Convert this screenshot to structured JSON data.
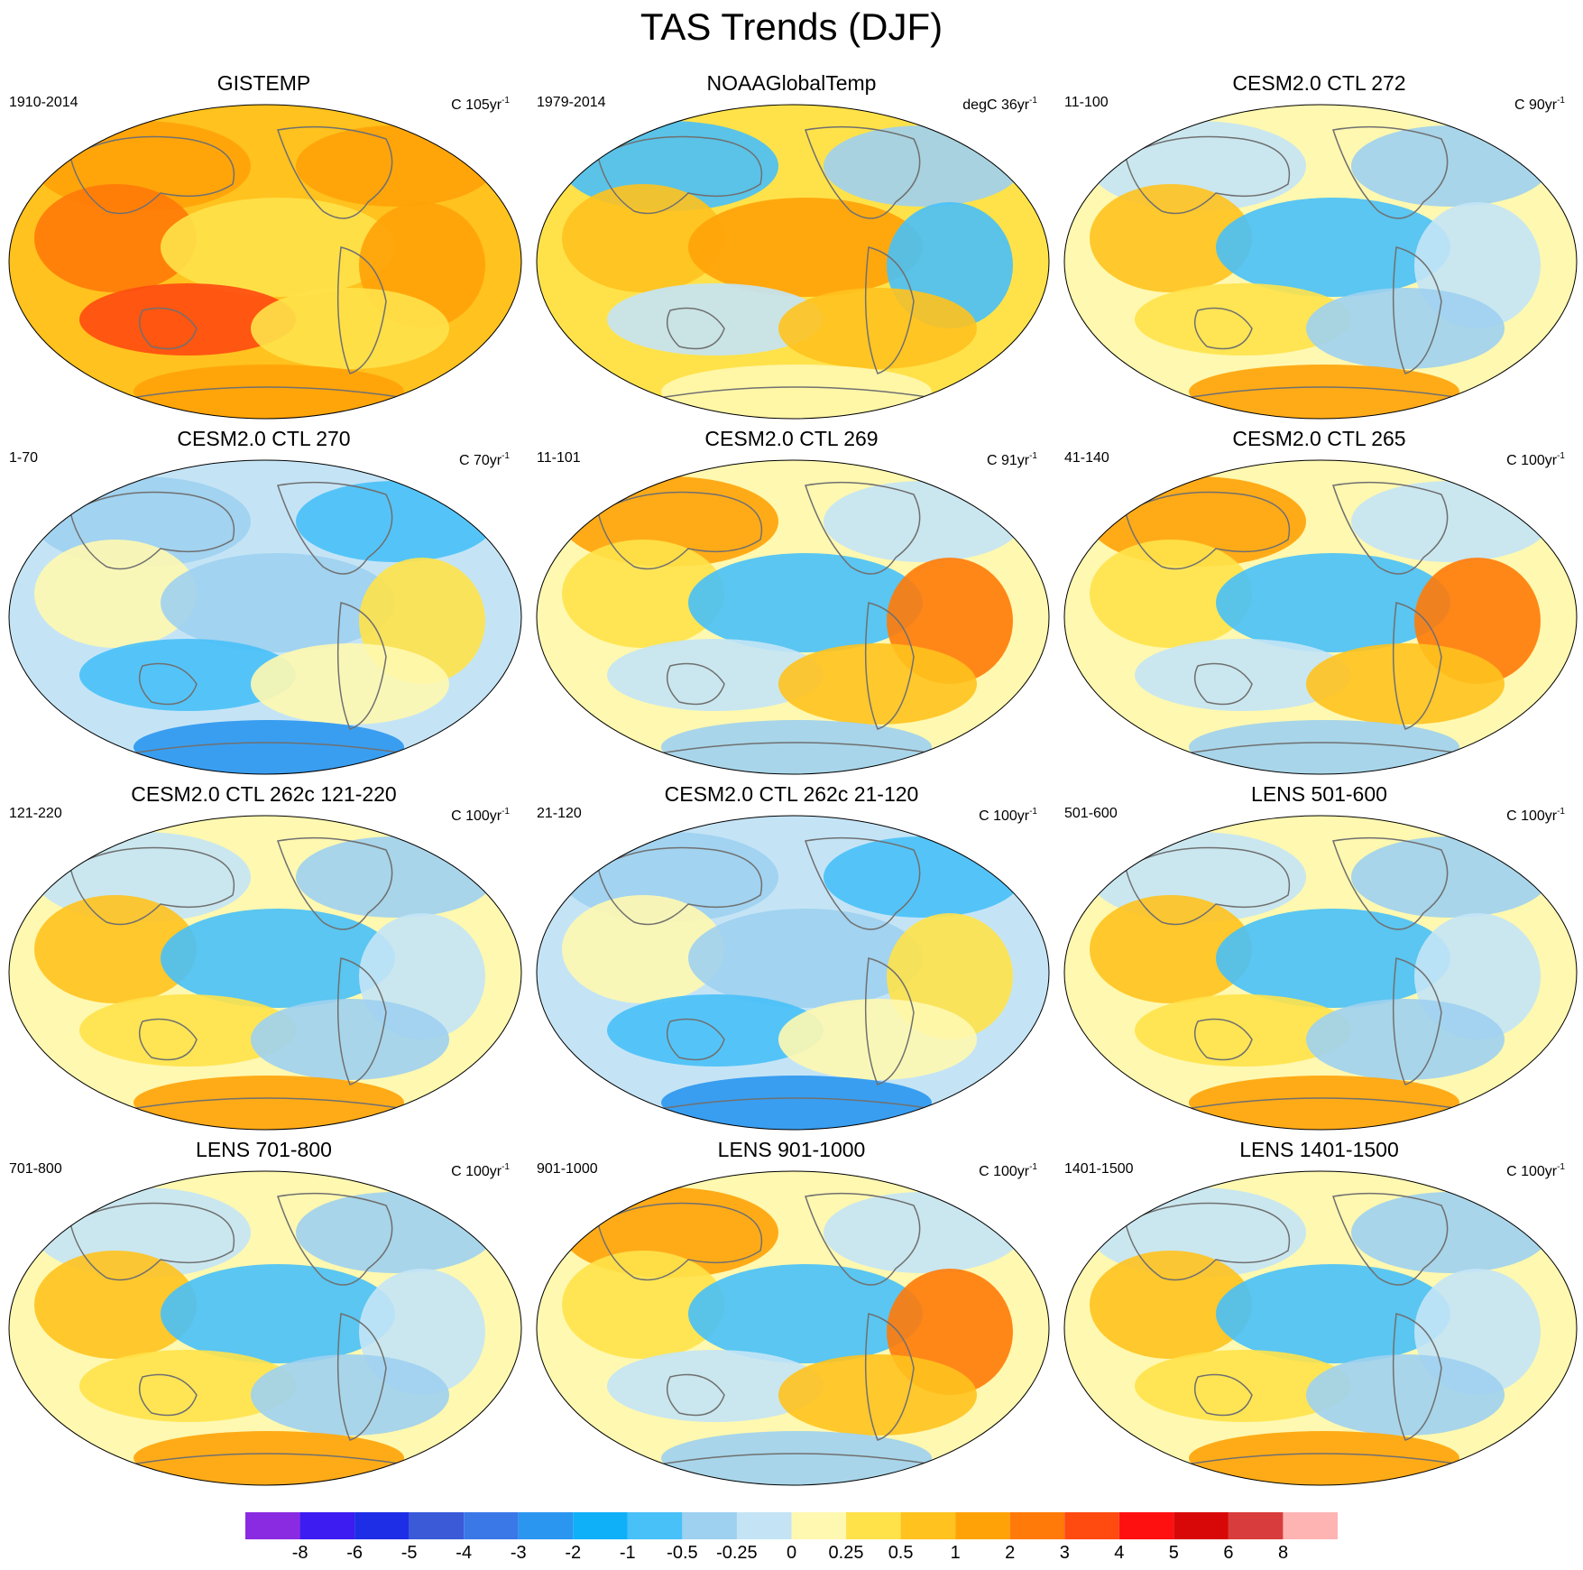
{
  "title": "TAS Trends (DJF)",
  "panels": [
    {
      "title": "GISTEMP",
      "left": "1910-2014",
      "unit": "C 105yr",
      "sup": "-1",
      "regime": "warm"
    },
    {
      "title": "NOAAGlobalTemp",
      "left": "1979-2014",
      "unit": "degC 36yr",
      "sup": "-1",
      "regime": "noaa"
    },
    {
      "title": "CESM2.0 CTL 272",
      "left": "11-100",
      "unit": "C 90yr",
      "sup": "-1",
      "regime": "mixed"
    },
    {
      "title": "CESM2.0 CTL 270",
      "left": "1-70",
      "unit": "C 70yr",
      "sup": "-1",
      "regime": "cool"
    },
    {
      "title": "CESM2.0 CTL 269",
      "left": "11-101",
      "unit": "C 91yr",
      "sup": "-1",
      "regime": "mixedwarm"
    },
    {
      "title": "CESM2.0 CTL 265",
      "left": "41-140",
      "unit": "C 100yr",
      "sup": "-1",
      "regime": "mixedwarm"
    },
    {
      "title": "CESM2.0 CTL 262c 121-220",
      "left": "121-220",
      "unit": "C 100yr",
      "sup": "-1",
      "regime": "mixed"
    },
    {
      "title": "CESM2.0 CTL 262c 21-120",
      "left": "21-120",
      "unit": "C 100yr",
      "sup": "-1",
      "regime": "cool"
    },
    {
      "title": "LENS 501-600",
      "left": "501-600",
      "unit": "C 100yr",
      "sup": "-1",
      "regime": "mixed"
    },
    {
      "title": "LENS 701-800",
      "left": "701-800",
      "unit": "C 100yr",
      "sup": "-1",
      "regime": "mixed"
    },
    {
      "title": "LENS 901-1000",
      "left": "901-1000",
      "unit": "C 100yr",
      "sup": "-1",
      "regime": "mixedwarm"
    },
    {
      "title": "LENS 1401-1500",
      "left": "1401-1500",
      "unit": "C 100yr",
      "sup": "-1",
      "regime": "mixed"
    }
  ],
  "legend": {
    "colors": [
      "#8a2be2",
      "#3c1cf0",
      "#1e2ee6",
      "#3a5ad8",
      "#3a78e8",
      "#2a96f0",
      "#10b0f8",
      "#48c0f8",
      "#9ed0f0",
      "#c4e4f6",
      "#fff8b0",
      "#ffe24a",
      "#ffc21e",
      "#ffa208",
      "#ff7a08",
      "#ff4a10",
      "#ff1010",
      "#d80808",
      "#d83c3c",
      "#ffb4b4"
    ],
    "labels": [
      "-8",
      "-6",
      "-5",
      "-4",
      "-3",
      "-2",
      "-1",
      "-0.5",
      "-0.25",
      "0",
      "0.25",
      "0.5",
      "1",
      "2",
      "3",
      "4",
      "5",
      "6",
      "8"
    ]
  }
}
